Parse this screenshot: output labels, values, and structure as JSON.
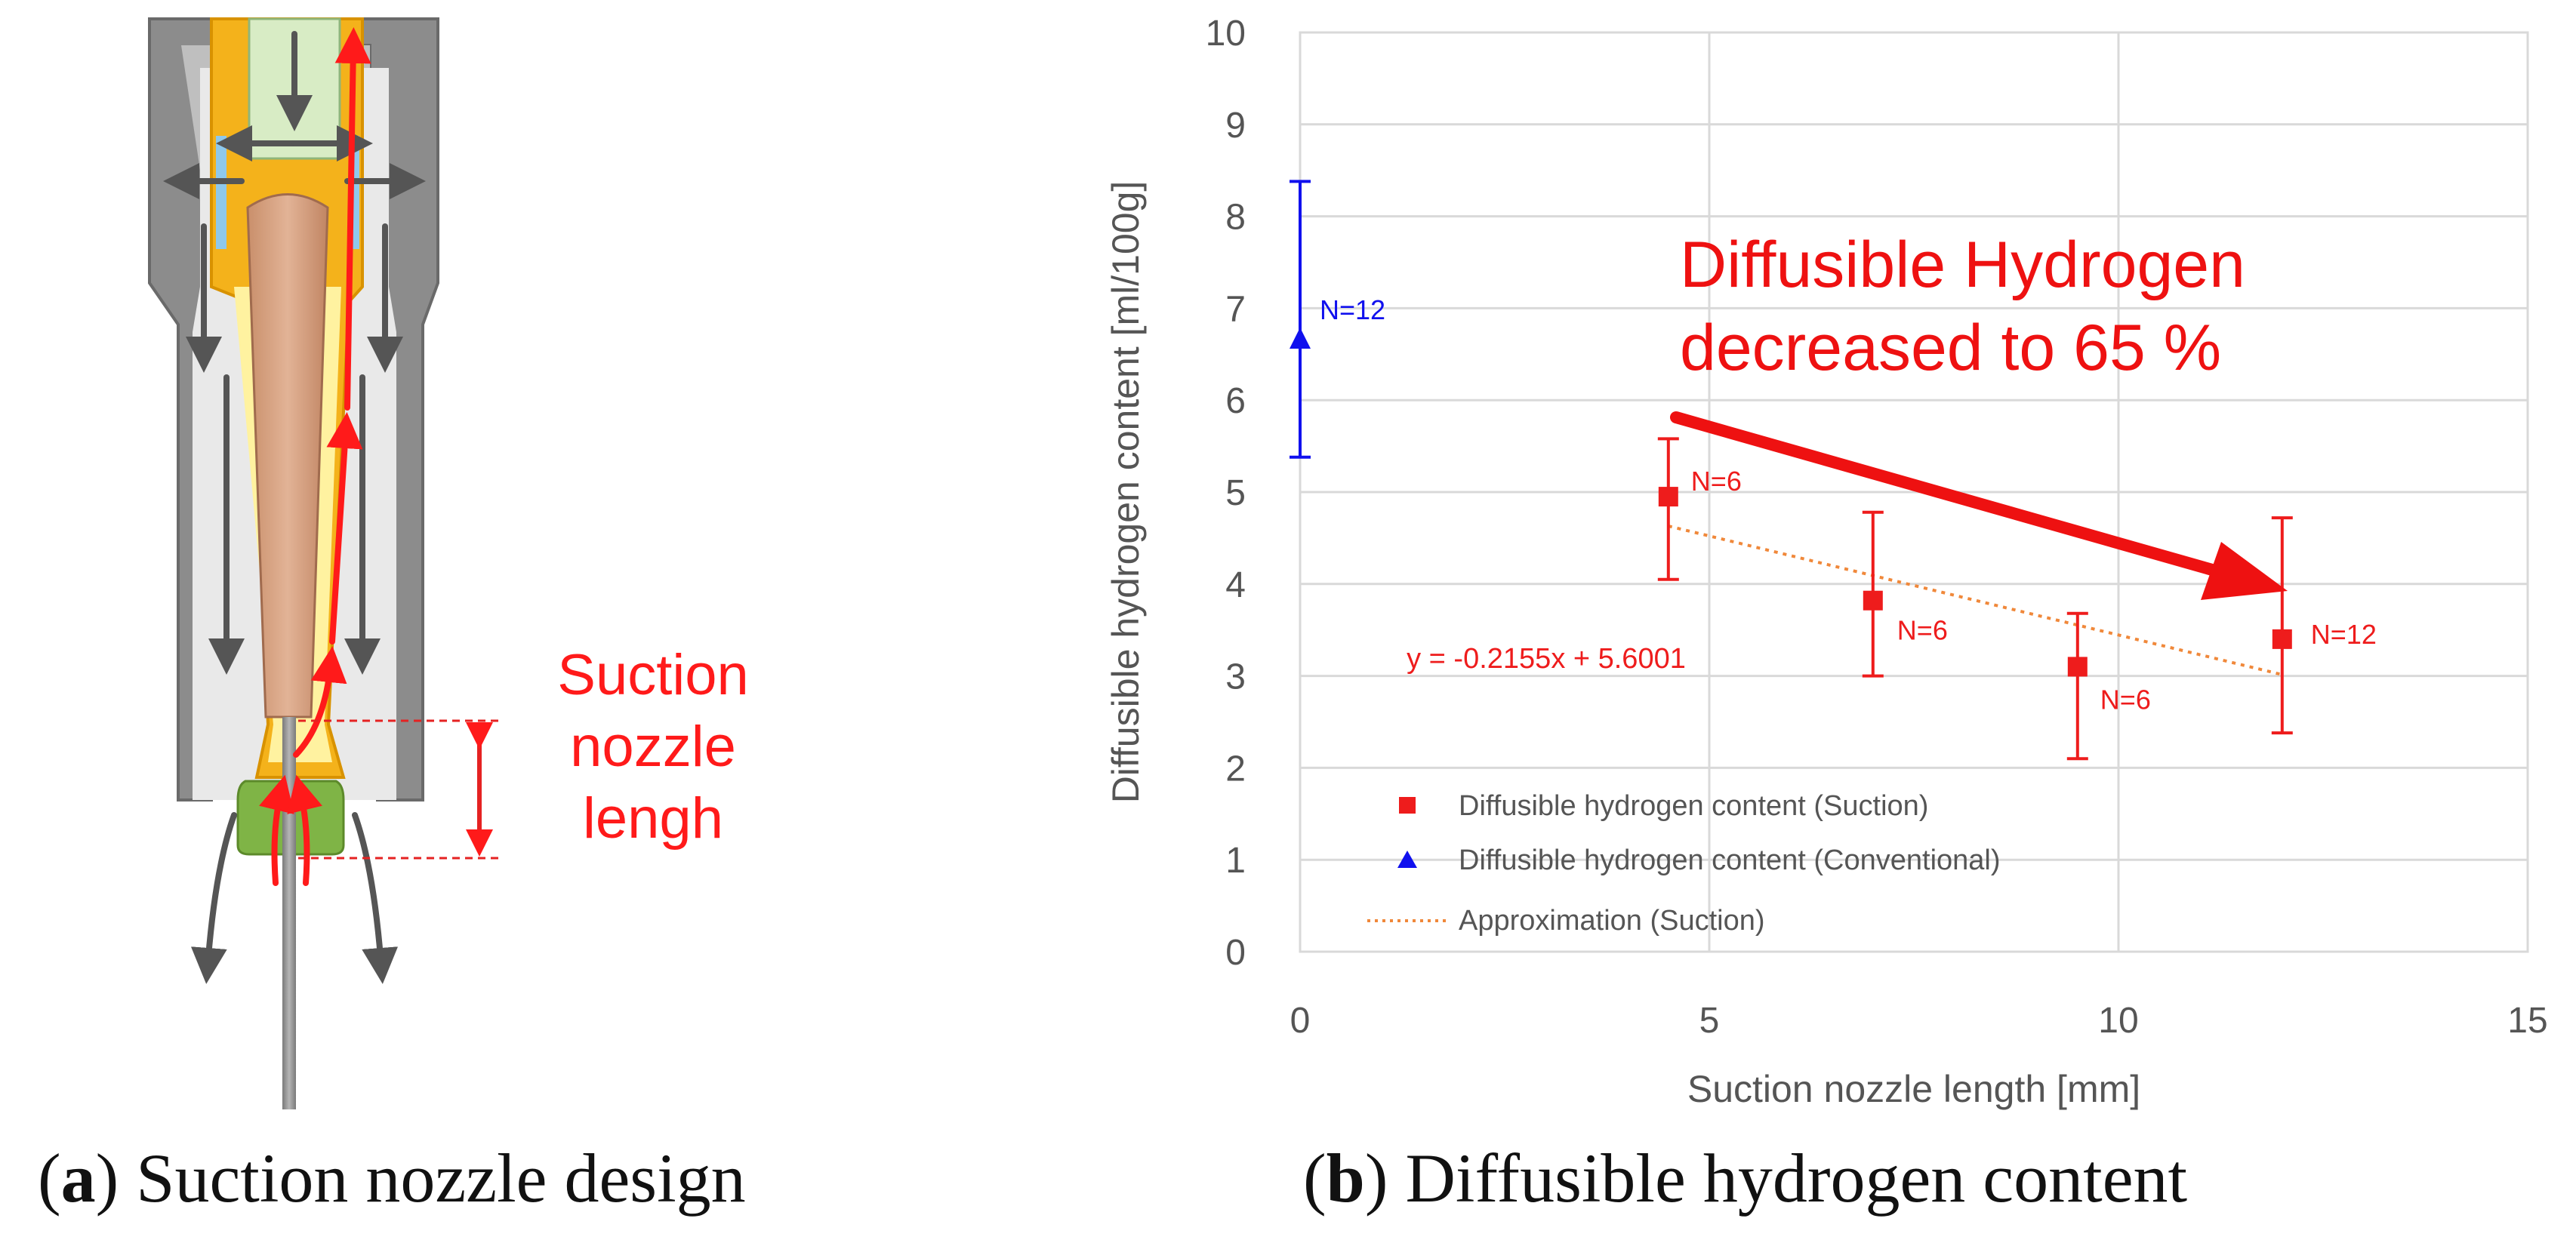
{
  "panel_a": {
    "label_letter": "a",
    "label_title": "Suction nozzle design",
    "annotation_line1": "Suction",
    "annotation_line2": "nozzle",
    "annotation_line3": "lengh"
  },
  "panel_b": {
    "label_letter": "b",
    "label_title": "Diffusible hydrogen content",
    "callout_line1": "Diffusible Hydrogen",
    "callout_line2": "decreased to 65 %",
    "equation": "y = -0.2155x + 5.6001"
  },
  "colors": {
    "suction": "#ee1c1c",
    "conventional": "#1010ee",
    "trend": "#f0883a",
    "callout": "#ee1111",
    "grid": "#d9d9d9"
  },
  "chart_data": {
    "type": "scatter",
    "title": "",
    "xlabel": "Suction nozzle length [mm]",
    "ylabel": "Diffusible hydrogen content [ml/100g]",
    "xlim": [
      0,
      15
    ],
    "ylim": [
      0,
      10
    ],
    "xticks": [
      "0",
      "5",
      "10",
      "15"
    ],
    "yticks": [
      "0",
      "1",
      "2",
      "3",
      "4",
      "5",
      "6",
      "7",
      "8",
      "9",
      "10"
    ],
    "grid": true,
    "legend_position": "bottom-left",
    "series": [
      {
        "name": "Diffusible hydrogen content (Suction)",
        "marker": "square",
        "x": [
          4.5,
          7.0,
          9.5,
          12.0
        ],
        "y": [
          4.95,
          3.82,
          3.1,
          3.4
        ],
        "err_low": [
          4.05,
          3.0,
          2.1,
          2.38
        ],
        "err_high": [
          5.58,
          4.78,
          3.68,
          4.72
        ],
        "labels": [
          "N=6",
          "N=6",
          "N=6",
          "N=12"
        ]
      },
      {
        "name": "Diffusible hydrogen content (Conventional)",
        "marker": "triangle",
        "x": [
          0
        ],
        "y": [
          6.65
        ],
        "err_low": [
          5.38
        ],
        "err_high": [
          8.38
        ],
        "labels": [
          "N=12"
        ]
      },
      {
        "name": "Approximation (Suction)",
        "marker": "dotted-line",
        "slope": -0.2155,
        "intercept": 5.6001,
        "x_range": [
          4.5,
          12.0
        ]
      }
    ]
  }
}
